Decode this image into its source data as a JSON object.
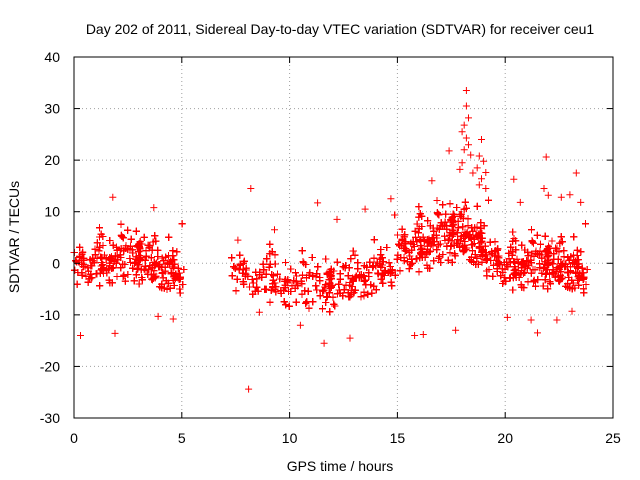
{
  "chart_data": {
    "type": "scatter",
    "title": "Day 202 of 2011, Sidereal Day-to-day VTEC variation (SDTVAR) for receiver ceu1",
    "xlabel": "GPS time / hours",
    "ylabel": "SDTVAR / TECUs",
    "xlim": [
      0,
      25
    ],
    "ylim": [
      -30,
      40
    ],
    "x_ticks": [
      "0",
      "5",
      "10",
      "15",
      "20",
      "25"
    ],
    "y_ticks": [
      "-30",
      "-20",
      "-10",
      "0",
      "10",
      "20",
      "30",
      "40"
    ],
    "grid": true,
    "marker": "+",
    "color": "#ff0000",
    "series": [
      {
        "name": "SDTVAR",
        "segments": [
          {
            "x_start": 0.0,
            "x_end": 5.1,
            "center": [
              [
                0,
                -1
              ],
              [
                1,
                0.5
              ],
              [
                2,
                1.5
              ],
              [
                3,
                1
              ],
              [
                4,
                -0.5
              ],
              [
                5.1,
                -1
              ]
            ],
            "spread": 3.2,
            "count": 1400
          },
          {
            "x_start": 7.3,
            "x_end": 15.0,
            "center": [
              [
                7.3,
                -2
              ],
              [
                9,
                -2.5
              ],
              [
                11,
                -4
              ],
              [
                12,
                -4.5
              ],
              [
                13,
                -3
              ],
              [
                14,
                -1
              ],
              [
                15,
                1
              ]
            ],
            "spread": 3.2,
            "count": 1800
          },
          {
            "x_start": 15.0,
            "x_end": 19.3,
            "center": [
              [
                15,
                2
              ],
              [
                16,
                4
              ],
              [
                17,
                5.5
              ],
              [
                18,
                6
              ],
              [
                19,
                4
              ],
              [
                19.3,
                2
              ]
            ],
            "spread": 3.6,
            "count": 1300
          },
          {
            "x_start": 19.3,
            "x_end": 23.8,
            "center": [
              [
                19.3,
                1
              ],
              [
                20,
                -0.5
              ],
              [
                21,
                0.5
              ],
              [
                22,
                0
              ],
              [
                23,
                -0.5
              ],
              [
                23.8,
                -1
              ]
            ],
            "spread": 3.2,
            "count": 1400
          }
        ],
        "outliers": [
          [
            0.3,
            -14
          ],
          [
            1.8,
            12.8
          ],
          [
            1.9,
            -13.6
          ],
          [
            3.7,
            10.8
          ],
          [
            3.9,
            -10.3
          ],
          [
            4.6,
            -10.8
          ],
          [
            8.2,
            14.5
          ],
          [
            7.6,
            4.5
          ],
          [
            8.6,
            -9.5
          ],
          [
            8.1,
            -24.4
          ],
          [
            9.3,
            6.5
          ],
          [
            10.5,
            -12
          ],
          [
            11.3,
            11.7
          ],
          [
            11.6,
            -15.5
          ],
          [
            12.2,
            8.5
          ],
          [
            12.8,
            -14.5
          ],
          [
            13.5,
            10.5
          ],
          [
            14.7,
            12.5
          ],
          [
            15.8,
            -14
          ],
          [
            16.2,
            -13.8
          ],
          [
            16.6,
            16
          ],
          [
            17.4,
            21.8
          ],
          [
            17.7,
            -13
          ],
          [
            18.2,
            33.5
          ],
          [
            18.2,
            30.5
          ],
          [
            18.3,
            28.2
          ],
          [
            18.1,
            26.8
          ],
          [
            18.0,
            25.5
          ],
          [
            18.2,
            24.3
          ],
          [
            18.3,
            23
          ],
          [
            18.1,
            22
          ],
          [
            18.4,
            21
          ],
          [
            18.0,
            19.5
          ],
          [
            17.9,
            18.2
          ],
          [
            18.5,
            17.5
          ],
          [
            18.9,
            24
          ],
          [
            18.8,
            20.8
          ],
          [
            19.0,
            19.8
          ],
          [
            18.7,
            18.5
          ],
          [
            19.1,
            17.6
          ],
          [
            18.9,
            16.4
          ],
          [
            18.8,
            15.2
          ],
          [
            19.1,
            14.5
          ],
          [
            20.4,
            16.3
          ],
          [
            20.7,
            11.8
          ],
          [
            21.2,
            -11
          ],
          [
            21.5,
            -13.5
          ],
          [
            21.9,
            20.6
          ],
          [
            21.8,
            14.5
          ],
          [
            22.0,
            13.2
          ],
          [
            22.6,
            12.8
          ],
          [
            23.3,
            17.5
          ],
          [
            23.0,
            13.3
          ],
          [
            23.5,
            11.8
          ],
          [
            22.4,
            -11
          ],
          [
            23.1,
            -9.3
          ],
          [
            20.1,
            -10.5
          ]
        ]
      }
    ]
  }
}
